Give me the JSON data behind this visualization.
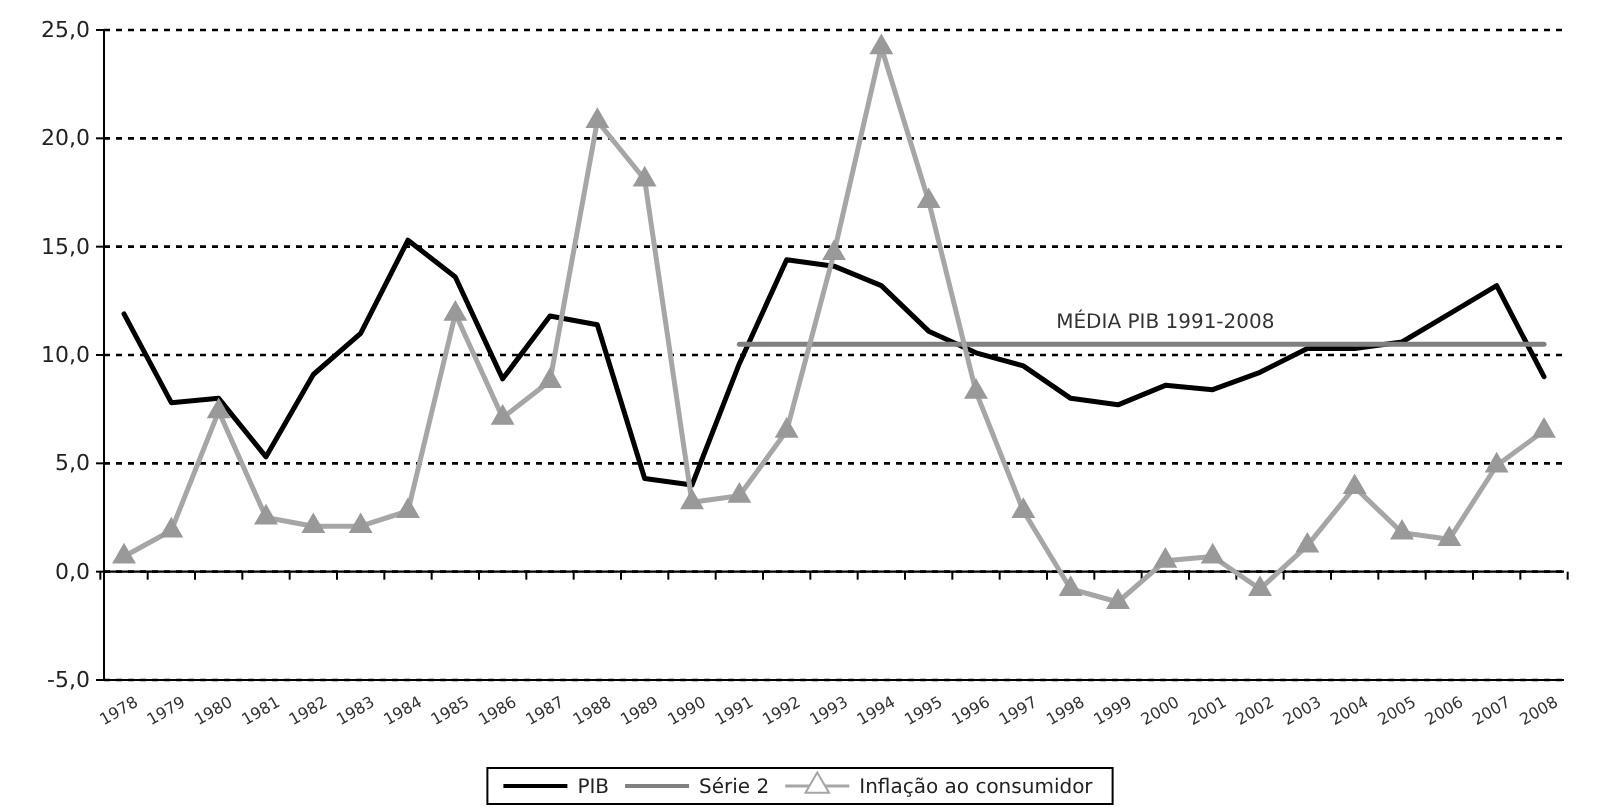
{
  "chart_data": {
    "type": "line",
    "categories": [
      "1978",
      "1979",
      "1980",
      "1981",
      "1982",
      "1983",
      "1984",
      "1985",
      "1986",
      "1987",
      "1988",
      "1989",
      "1990",
      "1991",
      "1992",
      "1993",
      "1994",
      "1995",
      "1996",
      "1997",
      "1998",
      "1999",
      "2000",
      "2001",
      "2002",
      "2003",
      "2004",
      "2005",
      "2006",
      "2007",
      "2008"
    ],
    "series": [
      {
        "name": "PIB",
        "color": "#000000",
        "marker": "none",
        "values": [
          11.9,
          7.8,
          8.0,
          5.3,
          9.1,
          11.0,
          15.3,
          13.6,
          8.9,
          11.8,
          11.4,
          4.3,
          4.0,
          9.6,
          14.4,
          14.1,
          13.2,
          11.1,
          10.1,
          9.5,
          8.0,
          7.7,
          8.6,
          8.4,
          9.2,
          10.3,
          10.3,
          10.6,
          11.9,
          13.2,
          9.0
        ]
      },
      {
        "name": "Série 2",
        "color": "#808080",
        "marker": "none",
        "values": [
          null,
          null,
          null,
          null,
          null,
          null,
          null,
          null,
          null,
          null,
          null,
          null,
          null,
          10.5,
          10.5,
          10.5,
          10.5,
          10.5,
          10.5,
          10.5,
          10.5,
          10.5,
          10.5,
          10.5,
          10.5,
          10.5,
          10.5,
          10.5,
          10.5,
          10.5,
          10.5
        ]
      },
      {
        "name": "Inflação ao consumidor",
        "color": "#a6a6a6",
        "marker": "triangle",
        "values": [
          0.7,
          1.9,
          7.4,
          2.5,
          2.1,
          2.1,
          2.8,
          11.9,
          7.1,
          8.8,
          20.8,
          18.1,
          3.2,
          3.5,
          6.5,
          14.7,
          24.2,
          17.1,
          8.3,
          2.8,
          -0.8,
          -1.4,
          0.5,
          0.7,
          -0.8,
          1.2,
          3.9,
          1.8,
          1.5,
          4.9,
          6.5
        ]
      }
    ],
    "annotations": [
      {
        "text": "MÉDIA PIB 1991-2008",
        "x": "2000",
        "y": 10.5
      }
    ],
    "ylim": [
      -5,
      25
    ],
    "yticks": [
      {
        "value": -5,
        "label": "-5,0"
      },
      {
        "value": 0,
        "label": "0,0"
      },
      {
        "value": 5,
        "label": "5,0"
      },
      {
        "value": 10,
        "label": "10,0"
      },
      {
        "value": 15,
        "label": "15,0"
      },
      {
        "value": 20,
        "label": "20,0"
      },
      {
        "value": 25,
        "label": "25,0"
      }
    ],
    "grid": "y",
    "legend": "bottom"
  }
}
